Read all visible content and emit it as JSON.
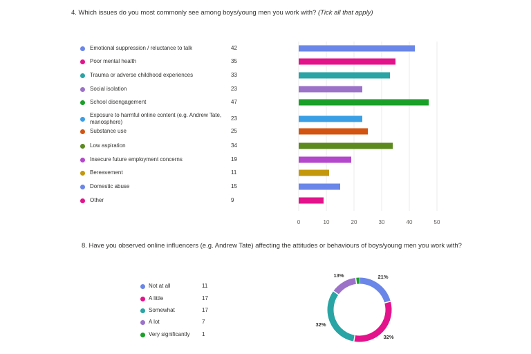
{
  "q4": {
    "title": "4. Which issues do you most commonly see among boys/young men you work with?",
    "hint": "(Tick all that apply)"
  },
  "q8": {
    "title": "8. Have you observed online influencers (e.g. Andrew Tate) affecting the attitudes or behaviours of boys/young men you work with?"
  },
  "chart_data": [
    {
      "type": "bar",
      "orientation": "horizontal",
      "categories": [
        "Emotional suppression / reluctance to talk",
        "Poor mental health",
        "Trauma or adverse childhood experiences",
        "Social isolation",
        "School disengagement",
        "Exposure to harmful online content (e.g. Andrew Tate, manosphere)",
        "Substance use",
        "Low aspiration",
        "Insecure future employment concerns",
        "Bereavement",
        "Domestic abuse",
        "Other"
      ],
      "values": [
        42,
        35,
        33,
        23,
        47,
        23,
        25,
        34,
        19,
        11,
        15,
        9
      ],
      "colors": [
        "#6a86e8",
        "#e3138c",
        "#2aa4a4",
        "#9c72c9",
        "#19a028",
        "#3b9fe6",
        "#d35411",
        "#5c8a1f",
        "#b448cc",
        "#c4980b",
        "#6a86e8",
        "#e3138c"
      ],
      "xlim": [
        0,
        50
      ],
      "xticks": [
        0,
        10,
        20,
        30,
        40,
        50
      ],
      "legend": "left",
      "grid": true
    },
    {
      "type": "pie",
      "style": "donut",
      "categories": [
        "Not at all",
        "A little",
        "Somewhat",
        "A lot",
        "Very significantly"
      ],
      "values": [
        11,
        17,
        17,
        7,
        1
      ],
      "colors": [
        "#6a86e8",
        "#e3138c",
        "#2aa4a4",
        "#9c72c9",
        "#19a028"
      ],
      "percent_labels": [
        "21%",
        "32%",
        "32%",
        "13%",
        ""
      ],
      "legend": "left"
    }
  ]
}
